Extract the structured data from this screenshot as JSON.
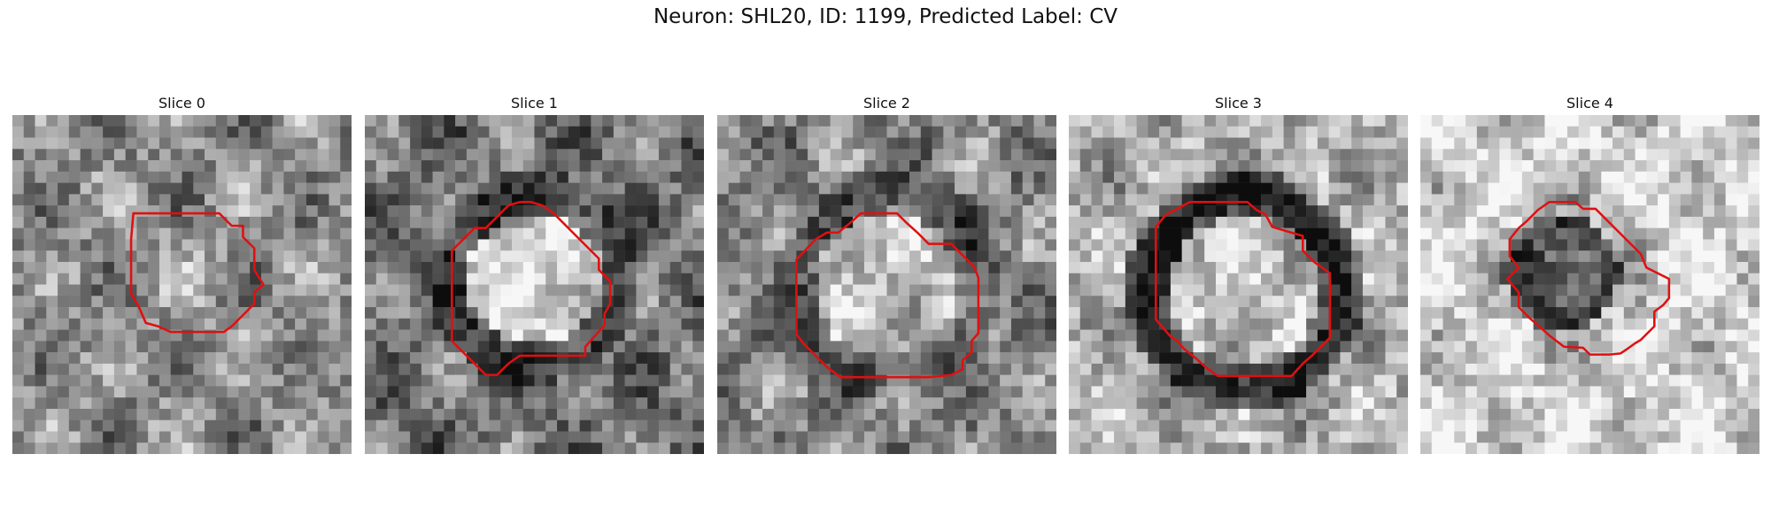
{
  "figure": {
    "title": "Neuron: SHL20, ID: 1199, Predicted Label: CV"
  },
  "panels": [
    {
      "title": "Slice 0"
    },
    {
      "title": "Slice 1"
    },
    {
      "title": "Slice 2"
    },
    {
      "title": "Slice 3"
    },
    {
      "title": "Slice 4"
    }
  ],
  "colors": {
    "contour": "#e01010",
    "background": "#ffffff"
  }
}
